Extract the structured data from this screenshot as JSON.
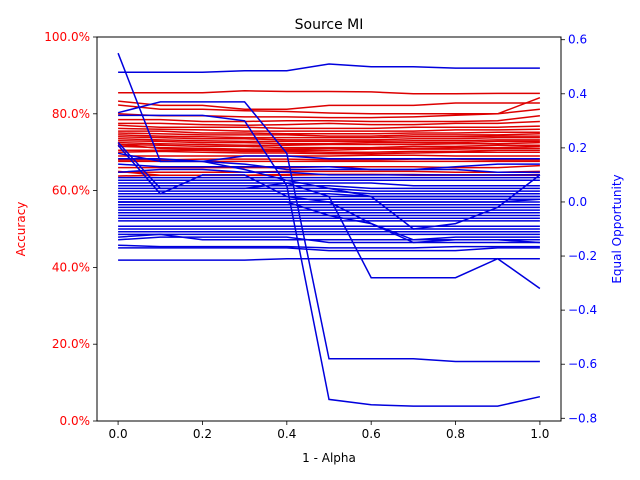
{
  "chart_data": {
    "type": "line",
    "title": "Source MI",
    "xlabel": "1 - Alpha",
    "ylabel_left": "Accuracy",
    "ylabel_right": "Equal Opportunity",
    "colors": {
      "left_axis": "#ff0000",
      "right_axis": "#0000ff",
      "accuracy_series": "#dd0000",
      "eo_series": "#0000dd"
    },
    "x": [
      0.0,
      0.1,
      0.2,
      0.3,
      0.4,
      0.5,
      0.6,
      0.7,
      0.8,
      0.9,
      1.0
    ],
    "xlim": [
      -0.05,
      1.05
    ],
    "xticks": [
      0.0,
      0.2,
      0.4,
      0.6,
      0.8,
      1.0
    ],
    "xtick_labels": [
      "0.0",
      "0.2",
      "0.4",
      "0.6",
      "0.8",
      "1.0"
    ],
    "ylim_left": [
      0.0,
      1.0
    ],
    "yticks_left": [
      0.0,
      0.2,
      0.4,
      0.6,
      0.8,
      1.0
    ],
    "ytick_labels_left": [
      "0.0%",
      "20.0%",
      "40.0%",
      "60.0%",
      "80.0%",
      "100.0%"
    ],
    "ylim_right": [
      -0.81,
      0.61
    ],
    "yticks_right": [
      -0.8,
      -0.6,
      -0.4,
      -0.2,
      0.0,
      0.2,
      0.4,
      0.6
    ],
    "ytick_labels_right": [
      "−0.8",
      "−0.6",
      "−0.4",
      "−0.2",
      "0.0",
      "0.2",
      "0.4",
      "0.6"
    ],
    "accuracy_series": [
      [
        0.855,
        0.855,
        0.855,
        0.86,
        0.858,
        0.858,
        0.857,
        0.852,
        0.852,
        0.853,
        0.853
      ],
      [
        0.833,
        0.822,
        0.822,
        0.812,
        0.812,
        0.822,
        0.822,
        0.822,
        0.828,
        0.828,
        0.828
      ],
      [
        0.823,
        0.812,
        0.812,
        0.808,
        0.806,
        0.802,
        0.8,
        0.8,
        0.8,
        0.8,
        0.812
      ],
      [
        0.8,
        0.795,
        0.795,
        0.792,
        0.792,
        0.79,
        0.79,
        0.792,
        0.796,
        0.8,
        0.842
      ],
      [
        0.785,
        0.785,
        0.78,
        0.78,
        0.782,
        0.782,
        0.78,
        0.78,
        0.78,
        0.782,
        0.795
      ],
      [
        0.775,
        0.775,
        0.772,
        0.77,
        0.772,
        0.775,
        0.772,
        0.772,
        0.775,
        0.775,
        0.78
      ],
      [
        0.77,
        0.765,
        0.765,
        0.765,
        0.762,
        0.762,
        0.762,
        0.765,
        0.765,
        0.765,
        0.768
      ],
      [
        0.762,
        0.76,
        0.758,
        0.755,
        0.755,
        0.755,
        0.755,
        0.755,
        0.758,
        0.758,
        0.76
      ],
      [
        0.755,
        0.755,
        0.75,
        0.75,
        0.748,
        0.748,
        0.748,
        0.75,
        0.75,
        0.752,
        0.752
      ],
      [
        0.75,
        0.748,
        0.745,
        0.745,
        0.745,
        0.742,
        0.742,
        0.745,
        0.745,
        0.745,
        0.748
      ],
      [
        0.745,
        0.742,
        0.74,
        0.738,
        0.738,
        0.738,
        0.738,
        0.74,
        0.74,
        0.742,
        0.742
      ],
      [
        0.74,
        0.738,
        0.735,
        0.735,
        0.732,
        0.732,
        0.732,
        0.735,
        0.735,
        0.738,
        0.738
      ],
      [
        0.735,
        0.732,
        0.73,
        0.728,
        0.728,
        0.728,
        0.728,
        0.73,
        0.73,
        0.732,
        0.732
      ],
      [
        0.73,
        0.728,
        0.725,
        0.725,
        0.722,
        0.722,
        0.725,
        0.725,
        0.725,
        0.728,
        0.728
      ],
      [
        0.725,
        0.722,
        0.72,
        0.718,
        0.718,
        0.72,
        0.72,
        0.72,
        0.722,
        0.722,
        0.725
      ],
      [
        0.72,
        0.718,
        0.715,
        0.715,
        0.712,
        0.712,
        0.712,
        0.715,
        0.715,
        0.718,
        0.718
      ],
      [
        0.715,
        0.712,
        0.71,
        0.708,
        0.708,
        0.71,
        0.71,
        0.71,
        0.712,
        0.712,
        0.715
      ],
      [
        0.72,
        0.71,
        0.708,
        0.705,
        0.705,
        0.705,
        0.708,
        0.708,
        0.708,
        0.71,
        0.71
      ],
      [
        0.705,
        0.705,
        0.705,
        0.702,
        0.702,
        0.7,
        0.7,
        0.702,
        0.702,
        0.705,
        0.705
      ],
      [
        0.7,
        0.702,
        0.7,
        0.698,
        0.698,
        0.696,
        0.696,
        0.698,
        0.7,
        0.7,
        0.7
      ],
      [
        0.69,
        0.69,
        0.69,
        0.69,
        0.69,
        0.69,
        0.692,
        0.692,
        0.69,
        0.69,
        0.69
      ],
      [
        0.68,
        0.68,
        0.682,
        0.682,
        0.682,
        0.68,
        0.68,
        0.682,
        0.682,
        0.68,
        0.68
      ],
      [
        0.676,
        0.676,
        0.676,
        0.676,
        0.676,
        0.676,
        0.676,
        0.676,
        0.676,
        0.676,
        0.676
      ],
      [
        0.66,
        0.66,
        0.66,
        0.66,
        0.66,
        0.662,
        0.662,
        0.662,
        0.66,
        0.66,
        0.665
      ],
      [
        0.648,
        0.648,
        0.648,
        0.648,
        0.65,
        0.65,
        0.65,
        0.65,
        0.648,
        0.648,
        0.65
      ],
      [
        0.638,
        0.64,
        0.64,
        0.64,
        0.642,
        0.642,
        0.642,
        0.64,
        0.64,
        0.64,
        0.642
      ],
      [
        0.65,
        0.64,
        0.64,
        0.64,
        0.64,
        0.642,
        0.642,
        0.642,
        0.64,
        0.64,
        0.64
      ]
    ],
    "eo_series": [
      [
        0.48,
        0.48,
        0.48,
        0.485,
        0.485,
        0.51,
        0.5,
        0.5,
        0.495,
        0.495,
        0.495
      ],
      [
        0.55,
        0.15,
        0.15,
        0.12,
        0.08,
        0.05,
        0.02,
        -0.1,
        -0.08,
        -0.02,
        0.1
      ],
      [
        0.33,
        0.37,
        0.37,
        0.37,
        0.18,
        -0.58,
        -0.58,
        -0.58,
        -0.59,
        -0.59,
        -0.59
      ],
      [
        0.32,
        0.32,
        0.32,
        0.3,
        0.06,
        -0.73,
        -0.75,
        -0.755,
        -0.755,
        -0.755,
        -0.72
      ],
      [
        0.22,
        0.05,
        0.05,
        0.05,
        0.07,
        0.02,
        -0.28,
        -0.28,
        -0.28,
        -0.21,
        -0.32
      ],
      [
        0.21,
        0.03,
        0.1,
        0.1,
        0.02,
        0.0,
        0.0,
        0.0,
        0.0,
        0.0,
        0.01
      ],
      [
        0.18,
        0.15,
        0.15,
        0.17,
        0.17,
        0.16,
        0.16,
        0.16,
        0.16,
        0.16,
        0.16
      ],
      [
        0.16,
        0.16,
        0.15,
        0.14,
        0.12,
        0.12,
        0.12,
        0.12,
        0.13,
        0.14,
        0.14
      ],
      [
        0.14,
        0.13,
        0.13,
        0.13,
        0.13,
        0.13,
        0.12,
        0.12,
        0.12,
        0.11,
        0.11
      ],
      [
        0.11,
        0.12,
        0.12,
        0.11,
        0.11,
        0.1,
        0.1,
        0.1,
        0.1,
        0.1,
        0.1
      ],
      [
        0.09,
        0.09,
        0.09,
        0.09,
        0.09,
        0.09,
        0.09,
        0.09,
        0.09,
        0.09,
        0.09
      ],
      [
        0.08,
        0.08,
        0.08,
        0.08,
        0.08,
        0.08,
        0.08,
        0.08,
        0.08,
        0.08,
        0.08
      ],
      [
        0.07,
        0.07,
        0.07,
        0.07,
        0.07,
        0.07,
        0.07,
        0.06,
        0.06,
        0.06,
        0.06
      ],
      [
        0.06,
        0.06,
        0.06,
        0.06,
        0.06,
        0.06,
        0.05,
        0.05,
        0.05,
        0.05,
        0.05
      ],
      [
        0.05,
        0.05,
        0.05,
        0.05,
        0.05,
        0.05,
        0.04,
        0.04,
        0.04,
        0.04,
        0.04
      ],
      [
        0.04,
        0.04,
        0.04,
        0.04,
        0.04,
        0.04,
        0.03,
        0.03,
        0.03,
        0.03,
        0.03
      ],
      [
        0.03,
        0.03,
        0.03,
        0.03,
        0.03,
        0.03,
        0.02,
        0.02,
        0.02,
        0.02,
        0.02
      ],
      [
        0.02,
        0.02,
        0.02,
        0.02,
        0.02,
        0.02,
        0.02,
        0.02,
        0.02,
        0.02,
        0.02
      ],
      [
        0.01,
        0.01,
        0.01,
        0.01,
        0.01,
        0.01,
        0.01,
        0.01,
        0.01,
        0.01,
        0.01
      ],
      [
        0.0,
        0.0,
        0.0,
        0.0,
        0.0,
        0.0,
        0.0,
        0.0,
        0.0,
        0.0,
        0.0
      ],
      [
        -0.01,
        -0.01,
        -0.01,
        -0.01,
        -0.01,
        -0.01,
        -0.01,
        -0.01,
        -0.01,
        -0.01,
        -0.01
      ],
      [
        -0.02,
        -0.02,
        -0.02,
        -0.02,
        -0.02,
        -0.02,
        -0.02,
        -0.02,
        -0.02,
        -0.02,
        -0.02
      ],
      [
        -0.03,
        -0.03,
        -0.03,
        -0.03,
        -0.03,
        -0.03,
        -0.03,
        -0.03,
        -0.03,
        -0.03,
        -0.03
      ],
      [
        -0.04,
        -0.04,
        -0.04,
        -0.04,
        -0.04,
        -0.04,
        -0.04,
        -0.04,
        -0.04,
        -0.04,
        -0.04
      ],
      [
        -0.05,
        -0.05,
        -0.05,
        -0.05,
        -0.05,
        -0.05,
        -0.05,
        -0.05,
        -0.05,
        -0.05,
        -0.05
      ],
      [
        -0.06,
        -0.06,
        -0.06,
        -0.06,
        -0.06,
        -0.06,
        -0.06,
        -0.06,
        -0.06,
        -0.06,
        -0.06
      ],
      [
        -0.07,
        -0.07,
        -0.07,
        -0.07,
        -0.07,
        -0.07,
        -0.07,
        -0.07,
        -0.07,
        -0.07,
        -0.07
      ],
      [
        -0.09,
        -0.09,
        -0.09,
        -0.09,
        -0.09,
        -0.09,
        -0.09,
        -0.09,
        -0.09,
        -0.09,
        -0.09
      ],
      [
        0.0,
        0.0,
        0.0,
        0.0,
        0.0,
        -0.05,
        -0.08,
        -0.14,
        -0.13,
        -0.13,
        -0.13
      ],
      [
        0.0,
        0.0,
        0.0,
        0.0,
        0.0,
        0.0,
        -0.08,
        -0.15,
        -0.14,
        -0.14,
        -0.15
      ],
      [
        -0.1,
        -0.1,
        -0.1,
        -0.1,
        -0.1,
        -0.1,
        -0.1,
        -0.1,
        -0.1,
        -0.1,
        -0.1
      ],
      [
        -0.11,
        -0.11,
        -0.11,
        -0.11,
        -0.11,
        -0.11,
        -0.11,
        -0.11,
        -0.11,
        -0.11,
        -0.11
      ],
      [
        -0.12,
        -0.12,
        -0.12,
        -0.12,
        -0.12,
        -0.12,
        -0.12,
        -0.12,
        -0.12,
        -0.12,
        -0.12
      ],
      [
        -0.13,
        -0.12,
        -0.14,
        -0.14,
        -0.14,
        -0.14,
        -0.14,
        -0.14,
        -0.14,
        -0.14,
        -0.14
      ],
      [
        -0.14,
        -0.13,
        -0.13,
        -0.13,
        -0.13,
        -0.15,
        -0.15,
        -0.15,
        -0.15,
        -0.15,
        -0.15
      ],
      [
        -0.16,
        -0.165,
        -0.165,
        -0.165,
        -0.165,
        -0.17,
        -0.17,
        -0.17,
        -0.165,
        -0.165,
        -0.165
      ],
      [
        -0.17,
        -0.17,
        -0.17,
        -0.17,
        -0.17,
        -0.18,
        -0.18,
        -0.18,
        -0.18,
        -0.17,
        -0.17
      ],
      [
        -0.215,
        -0.215,
        -0.215,
        -0.215,
        -0.21,
        -0.21,
        -0.21,
        -0.21,
        -0.21,
        -0.21,
        -0.21
      ]
    ]
  }
}
